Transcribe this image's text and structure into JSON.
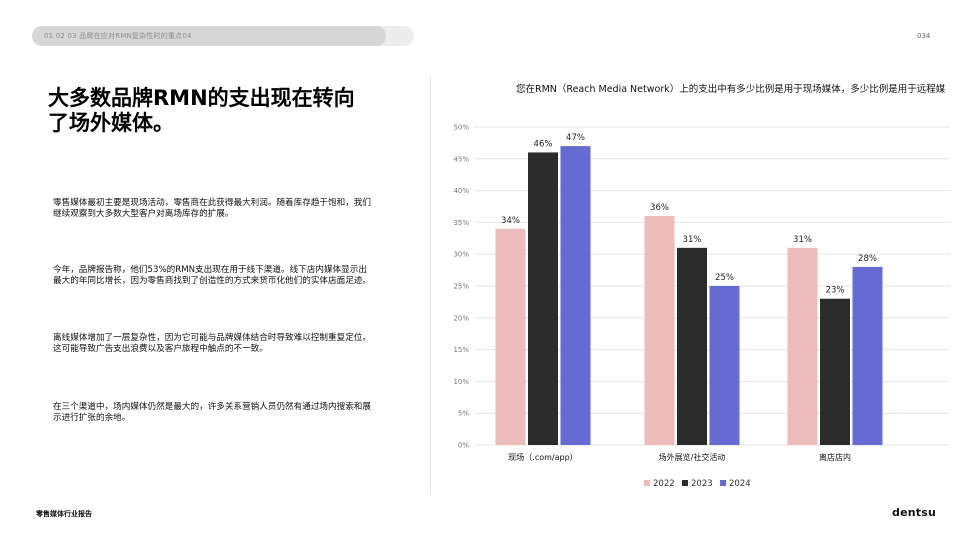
{
  "header": {
    "breadcrumb": "01 02 03 品牌在应对RMN复杂性时的重点04",
    "page_number": "034"
  },
  "title": "大多数品牌RMN的支出现在转向了场外媒体。",
  "paragraphs": [
    "零售媒体最初主要是现场活动，零售商在此获得最大利润。随着库存趋于饱和，我们继续观察到大多数大型客户对离场库存的扩展。",
    "今年，品牌报告称，他们53%的RMN支出现在用于线下渠道。线下店内媒体显示出最大的年同比增长，因为零售商找到了创造性的方式来货币化他们的实体店面足迹。",
    "离线媒体增加了一层复杂性，因为它可能与品牌媒体结合时导致难以控制重复定位。这可能导致广告支出浪费以及客户旅程中触点的不一致。",
    "在三个渠道中，场内媒体仍然是最大的，许多关系营销人员仍然有通过场内搜索和展示进行扩张的余地。"
  ],
  "chart_data": {
    "type": "bar",
    "title": "您在RMN（Reach Media Network）上的支出中有多少比例是用于现场媒体，多少比例是用于远程媒",
    "categories": [
      "现场（.com/app）",
      "场外展览/社交活动",
      "离店店内"
    ],
    "series": [
      {
        "name": "2022",
        "values": [
          34,
          36,
          31
        ],
        "color": "#ecbcbb"
      },
      {
        "name": "2023",
        "values": [
          46,
          31,
          23
        ],
        "color": "#2b2b2b"
      },
      {
        "name": "2024",
        "values": [
          47,
          25,
          28
        ],
        "color": "#666bd4"
      }
    ],
    "value_suffix": "%",
    "ylim": [
      0,
      50
    ],
    "yticks": [
      0,
      5,
      10,
      15,
      20,
      25,
      30,
      35,
      40,
      45,
      50
    ],
    "ytick_labels": [
      "0%",
      "5%",
      "10%",
      "15%",
      "20%",
      "25%",
      "30%",
      "35%",
      "40%",
      "45%",
      "50%"
    ],
    "grid": true,
    "legend_position": "bottom"
  },
  "footer": {
    "report_name": "零售媒体行业报告",
    "brand": "dentsu"
  }
}
